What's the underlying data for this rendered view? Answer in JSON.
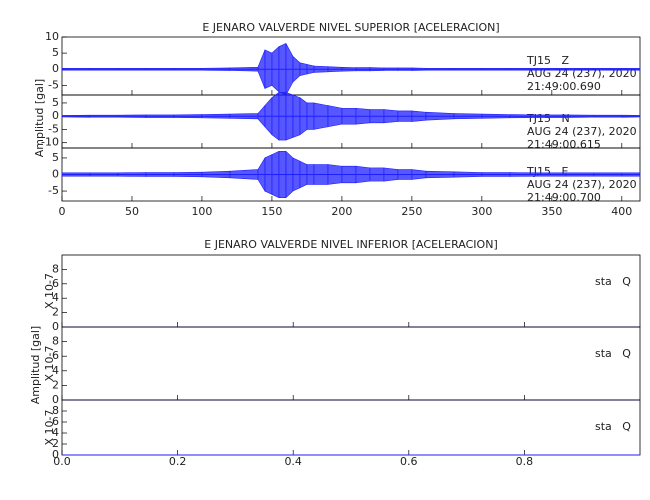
{
  "chart_data": [
    {
      "type": "waveform",
      "title": "E JENARO VALVERDE NIVEL SUPERIOR [ACELERACION]",
      "ylabel": "Amplitud [gal]",
      "xlim": [
        0,
        413
      ],
      "xticks": [
        0,
        50,
        100,
        150,
        200,
        250,
        300,
        350,
        400
      ],
      "x": [
        0,
        20,
        40,
        60,
        80,
        100,
        120,
        140,
        145,
        150,
        155,
        160,
        165,
        170,
        175,
        180,
        190,
        200,
        210,
        220,
        230,
        240,
        250,
        260,
        280,
        300,
        320,
        340,
        360,
        380,
        400,
        413
      ],
      "panels": [
        {
          "ylim": [
            -8,
            10
          ],
          "yticks": [
            -5,
            0,
            5,
            10
          ],
          "color": "#1f1fff",
          "annotations": [
            "TJ15   Z",
            "AUG 24 (237), 2020",
            "21:49:00.690"
          ],
          "values": [
            0.3,
            0.3,
            0.3,
            0.3,
            0.3,
            0.3,
            0.4,
            0.6,
            6,
            5,
            7,
            8,
            4,
            2,
            1.5,
            1,
            0.8,
            0.6,
            0.5,
            0.5,
            0.4,
            0.4,
            0.4,
            0.3,
            0.3,
            0.3,
            0.3,
            0.3,
            0.3,
            0.3,
            0.3,
            0.3
          ]
        },
        {
          "ylim": [
            -12,
            8
          ],
          "yticks": [
            -10,
            -5,
            0,
            5
          ],
          "color": "#1f1fff",
          "annotations": [
            "TJ15   N",
            "AUG 24 (237), 2020",
            "21:49:00.615"
          ],
          "values": [
            0.3,
            0.4,
            0.4,
            0.5,
            0.5,
            0.6,
            0.8,
            1,
            4,
            7,
            9,
            9,
            8,
            7,
            5,
            5,
            4,
            3,
            3,
            2.5,
            2.5,
            2,
            2,
            1.5,
            1,
            0.8,
            0.6,
            0.5,
            0.5,
            0.4,
            0.4,
            0.3
          ]
        },
        {
          "ylim": [
            -8,
            8
          ],
          "yticks": [
            -5,
            0,
            5
          ],
          "color": "#1f1fff",
          "annotations": [
            "TJ15   E",
            "AUG 24 (237), 2020",
            "21:49:00.700"
          ],
          "values": [
            0.5,
            0.5,
            0.5,
            0.6,
            0.6,
            0.7,
            1,
            1.5,
            5,
            6,
            7,
            7,
            5,
            4,
            3,
            3,
            3,
            2.5,
            2.5,
            2,
            2,
            1.5,
            1.5,
            1,
            0.8,
            0.6,
            0.6,
            0.5,
            0.5,
            0.5,
            0.5,
            0.5
          ]
        }
      ]
    },
    {
      "type": "waveform",
      "title": "E JENARO VALVERDE NIVEL INFERIOR [ACELERACION]",
      "ylabel": "Amplitud [gal]",
      "xlim": [
        0,
        1
      ],
      "xticks": [
        {
          "value": 0,
          "label": "0.0"
        },
        {
          "value": 0.2,
          "label": "0.2"
        },
        {
          "value": 0.4,
          "label": "0.4"
        },
        {
          "value": 0.6,
          "label": "0.6"
        },
        {
          "value": 0.8,
          "label": "0.8"
        }
      ],
      "x": [
        0,
        1
      ],
      "panels": [
        {
          "ylim": [
            0,
            10
          ],
          "yticks": [
            0,
            2,
            4,
            6,
            8
          ],
          "color": "#1f1fff",
          "scale_label": "X 10-7",
          "annotations": [
            "sta   Q"
          ],
          "values": [
            0,
            0
          ]
        },
        {
          "ylim": [
            0,
            10
          ],
          "yticks": [
            0,
            2,
            4,
            6,
            8
          ],
          "color": "#1f1fff",
          "scale_label": "X 10-7",
          "annotations": [
            "sta   Q"
          ],
          "values": [
            0,
            0
          ]
        },
        {
          "ylim": [
            0,
            10
          ],
          "yticks": [
            0,
            2,
            4,
            6,
            8
          ],
          "color": "#1f1fff",
          "scale_label": "X 10-7",
          "annotations": [
            "sta   Q"
          ],
          "values": [
            0,
            0
          ]
        }
      ]
    }
  ]
}
